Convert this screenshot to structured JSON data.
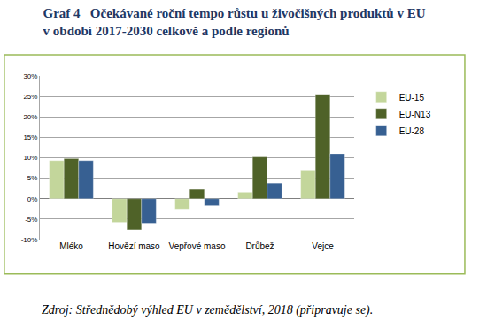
{
  "chart_data": {
    "type": "bar",
    "title": "Graf 4   Očekávané roční tempo růstu u živočišných produktů v EU\nv období 2017-2030 celkově a podle regionů",
    "annotations": [
      "Zdroj: Střednědobý výhled EU v zemědělství, 2018 (připravuje se)."
    ],
    "categories": [
      "Mléko",
      "Hovězí maso",
      "Vepřové maso",
      "Drůbež",
      "Vejce"
    ],
    "series": [
      {
        "name": "EU-15",
        "color": "#c3d69b",
        "values": [
          9.3,
          -5.8,
          -2.5,
          1.6,
          7.0
        ]
      },
      {
        "name": "EU-N13",
        "color": "#4f6228",
        "values": [
          9.8,
          -7.6,
          2.3,
          10.2,
          25.5
        ]
      },
      {
        "name": "EU-28",
        "color": "#376092",
        "values": [
          9.3,
          -6.0,
          -1.7,
          3.8,
          11.0
        ]
      }
    ],
    "ylim": [
      -10,
      30
    ],
    "yticks": [
      {
        "value": -10,
        "label": "-10%"
      },
      {
        "value": -5,
        "label": "-5%"
      },
      {
        "value": 0,
        "label": "0%"
      },
      {
        "value": 5,
        "label": "5%"
      },
      {
        "value": 10,
        "label": "10%"
      },
      {
        "value": 15,
        "label": "15%"
      },
      {
        "value": 20,
        "label": "20%"
      },
      {
        "value": 25,
        "label": "25%"
      },
      {
        "value": 30,
        "label": "30%"
      }
    ],
    "grid": true,
    "legend": "right"
  }
}
